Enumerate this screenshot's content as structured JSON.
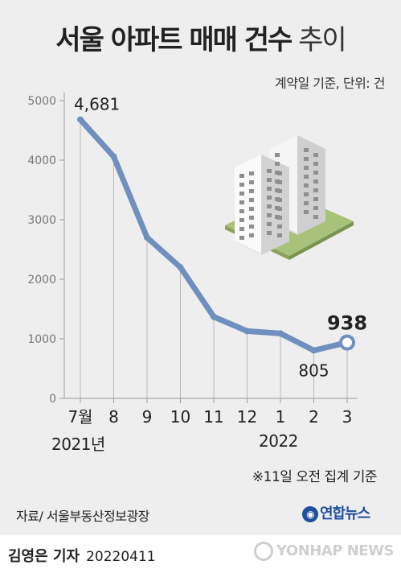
{
  "header": {
    "title_bold": "서울 아파트 매매 건수",
    "title_light": "추이",
    "unit_note": "계약일 기준, 단위: 건"
  },
  "chart_data": {
    "type": "line",
    "categories": [
      "7월",
      "8",
      "9",
      "10",
      "11",
      "12",
      "1",
      "2",
      "3"
    ],
    "values": [
      4681,
      4060,
      2700,
      2200,
      1370,
      1130,
      1090,
      805,
      938
    ],
    "ylim": [
      0,
      5000
    ],
    "yticks": [
      "0",
      "1000",
      "2000",
      "3000",
      "4000",
      "5000"
    ],
    "data_labels": [
      {
        "index": 0,
        "text": "4,681"
      },
      {
        "index": 7,
        "text": "805"
      },
      {
        "index": 8,
        "text": "938"
      }
    ],
    "grid": false,
    "line_color": "#6f8fbf",
    "year_labels": [
      "2021년",
      "2022"
    ]
  },
  "footnote": "※11일 오전 집계 기준",
  "source": "자료/ 서울부동산정보광장",
  "brand": "연합뉴스",
  "footer": {
    "author": "김영은 기자",
    "date": "20220411",
    "watermark": "YONHAP NEWS"
  }
}
